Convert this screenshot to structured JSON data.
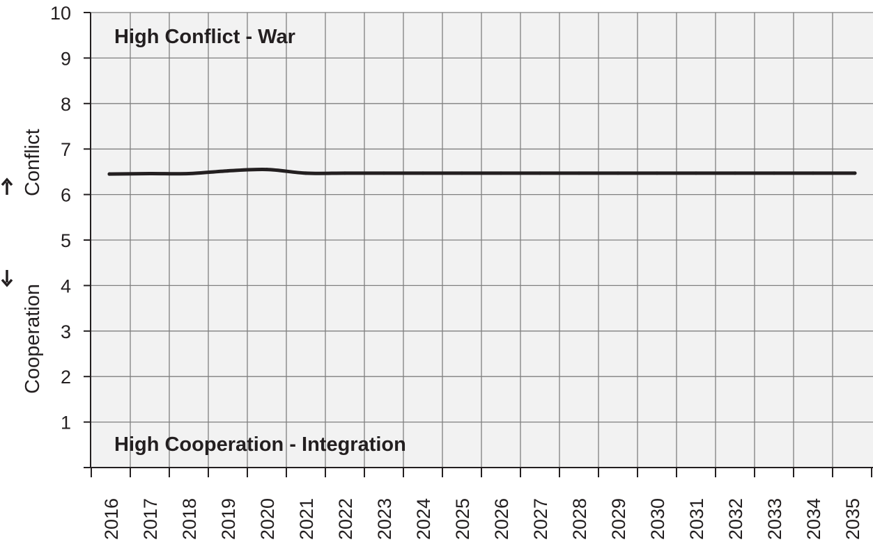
{
  "chart_data": {
    "type": "line",
    "x": [
      2016,
      2017,
      2018,
      2019,
      2020,
      2021,
      2022,
      2023,
      2024,
      2025,
      2026,
      2027,
      2028,
      2029,
      2030,
      2031,
      2032,
      2033,
      2034,
      2035
    ],
    "series": [
      {
        "values": [
          6.45,
          6.46,
          6.46,
          6.52,
          6.55,
          6.47,
          6.47,
          6.47,
          6.47,
          6.47,
          6.47,
          6.47,
          6.47,
          6.47,
          6.47,
          6.47,
          6.47,
          6.47,
          6.47,
          6.47
        ],
        "color": "#231f20"
      }
    ],
    "title": "",
    "xlabel": "",
    "ylabel_conflict": "Conflict",
    "ylabel_cooperation": "Cooperation",
    "ylim": [
      0,
      10
    ],
    "yticks": [
      1,
      2,
      3,
      4,
      5,
      6,
      7,
      8,
      9,
      10
    ],
    "annotations": {
      "top": "High Conflict - War",
      "bottom": "High Cooperation - Integration"
    },
    "grid": true,
    "legend": "none",
    "colors": {
      "plot_background": "#f2f2f2",
      "grid": "#7f7f7f",
      "axis": "#231f20"
    }
  }
}
